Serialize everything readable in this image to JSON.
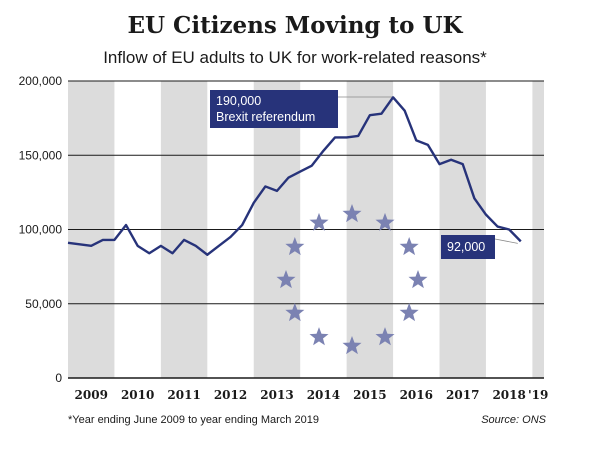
{
  "header": {
    "title": "EU Citizens Moving to UK",
    "subtitle": "Inflow of EU adults to UK for work-related reasons*"
  },
  "footer": {
    "footnote": "*Year ending June 2009 to year ending March 2019",
    "source": "Source: ONS"
  },
  "colors": {
    "line": "#27337a",
    "band": "#dcdcdc",
    "star": "#7b82b2",
    "annotation_bg": "#27337a"
  },
  "chart_data": {
    "type": "line",
    "title": "EU Citizens Moving to UK",
    "subtitle": "Inflow of EU adults to UK for work-related reasons*",
    "xlabel": "",
    "ylabel": "",
    "ylim": [
      0,
      200000
    ],
    "xlim": [
      2009.0,
      2019.25
    ],
    "yticks": [
      0,
      50000,
      100000,
      150000,
      200000
    ],
    "ytick_labels": [
      "0",
      "50,000",
      "100,000",
      "150,000",
      "200,000"
    ],
    "xtick_labels": [
      "2009",
      "2010",
      "2011",
      "2012",
      "2013",
      "2014",
      "2015",
      "2016",
      "2017",
      "2018",
      "'19"
    ],
    "grid": true,
    "series": [
      {
        "values": [
          [
            2009.0,
            91000
          ],
          [
            2009.25,
            90000
          ],
          [
            2009.5,
            89000
          ],
          [
            2009.75,
            93000
          ],
          [
            2010.0,
            93000
          ],
          [
            2010.25,
            103000
          ],
          [
            2010.5,
            89000
          ],
          [
            2010.75,
            84000
          ],
          [
            2011.0,
            89000
          ],
          [
            2011.25,
            84000
          ],
          [
            2011.5,
            93000
          ],
          [
            2011.75,
            89000
          ],
          [
            2012.0,
            83000
          ],
          [
            2012.25,
            89000
          ],
          [
            2012.5,
            95000
          ],
          [
            2012.75,
            103000
          ],
          [
            2013.0,
            118000
          ],
          [
            2013.25,
            129000
          ],
          [
            2013.5,
            126000
          ],
          [
            2013.75,
            135000
          ],
          [
            2014.0,
            139000
          ],
          [
            2014.25,
            143000
          ],
          [
            2014.5,
            153000
          ],
          [
            2014.75,
            162000
          ],
          [
            2015.0,
            162000
          ],
          [
            2015.25,
            163000
          ],
          [
            2015.5,
            177000
          ],
          [
            2015.75,
            178000
          ],
          [
            2016.0,
            189000
          ],
          [
            2016.25,
            180000
          ],
          [
            2016.5,
            160000
          ],
          [
            2016.75,
            157000
          ],
          [
            2017.0,
            144000
          ],
          [
            2017.25,
            147000
          ],
          [
            2017.5,
            144000
          ],
          [
            2017.75,
            121000
          ],
          [
            2018.0,
            110000
          ],
          [
            2018.25,
            102000
          ],
          [
            2018.5,
            100000
          ],
          [
            2018.75,
            92000
          ]
        ]
      }
    ],
    "annotations": [
      {
        "x": 2016.0,
        "y": 189000,
        "lines": [
          "190,000",
          "Brexit referendum"
        ]
      },
      {
        "x": 2018.75,
        "y": 92000,
        "lines": [
          "92,000"
        ]
      }
    ]
  }
}
